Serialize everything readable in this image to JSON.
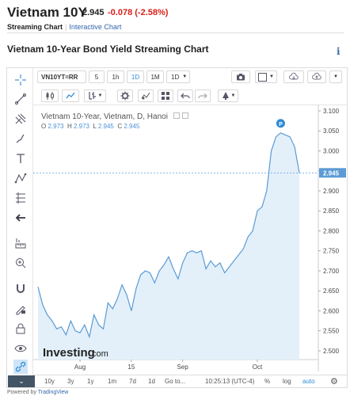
{
  "header": {
    "title": "Vietnam 10Y",
    "price": "2.945",
    "change": "-0.078 (-2.58%)",
    "tab_streaming": "Streaming Chart",
    "tab_interactive": "Interactive Chart",
    "chart_title": "Vietnam 10-Year Bond Yield Streaming Chart",
    "info_icon": "i"
  },
  "toolbar": {
    "symbol": "VN10YT=RR",
    "intervals": [
      "5",
      "1h",
      "1D",
      "1M",
      "1D"
    ],
    "active_interval": "1D"
  },
  "legend": {
    "title": "Vietnam 10-Year, Vietnam, D, Hanoi",
    "o_label": "O",
    "o_value": "2.973",
    "h_label": "H",
    "h_value": "2.973",
    "l_label": "L",
    "l_value": "2.945",
    "c_label": "C",
    "c_value": "2.945"
  },
  "bottom": {
    "ranges": [
      "10y",
      "3y",
      "1y",
      "1m",
      "7d",
      "1d",
      "Go to..."
    ],
    "time": "10:25:13 (UTC-4)",
    "pct": "%",
    "log": "log",
    "auto": "auto"
  },
  "footer": {
    "powered_prefix": "Powered by ",
    "powered_link": "TradingView"
  },
  "watermark": {
    "main": "Investing",
    "suffix": ".com"
  },
  "colors": {
    "line": "#5b9bd5",
    "area": "#e3f0fa",
    "negative": "#d91e18",
    "price_label_bg": "#5b9bd5",
    "accent": "#2f8bd6"
  },
  "chart_data": {
    "type": "area",
    "ylim": [
      2.49,
      3.1
    ],
    "yticks": [
      "3.100",
      "3.050",
      "3.000",
      "2.950",
      "2.900",
      "2.850",
      "2.800",
      "2.750",
      "2.700",
      "2.650",
      "2.600",
      "2.550",
      "2.500"
    ],
    "xtick_labels": [
      "Aug",
      "15",
      "Sep",
      "Oct"
    ],
    "xtick_index": [
      9,
      20,
      31,
      47
    ],
    "current_price": "2.945",
    "current_value": 2.945,
    "marker_label": "P",
    "marker_index": 52,
    "values": [
      2.66,
      2.615,
      2.59,
      2.575,
      2.555,
      2.56,
      2.54,
      2.575,
      2.55,
      2.545,
      2.565,
      2.535,
      2.59,
      2.565,
      2.555,
      2.62,
      2.605,
      2.63,
      2.665,
      2.64,
      2.6,
      2.655,
      2.69,
      2.7,
      2.695,
      2.67,
      2.7,
      2.715,
      2.735,
      2.705,
      2.68,
      2.72,
      2.745,
      2.75,
      2.745,
      2.75,
      2.705,
      2.725,
      2.71,
      2.72,
      2.695,
      2.71,
      2.725,
      2.74,
      2.755,
      2.785,
      2.8,
      2.85,
      2.86,
      2.9,
      3.0,
      3.035,
      3.045,
      3.04,
      3.035,
      3.01,
      2.945
    ]
  }
}
